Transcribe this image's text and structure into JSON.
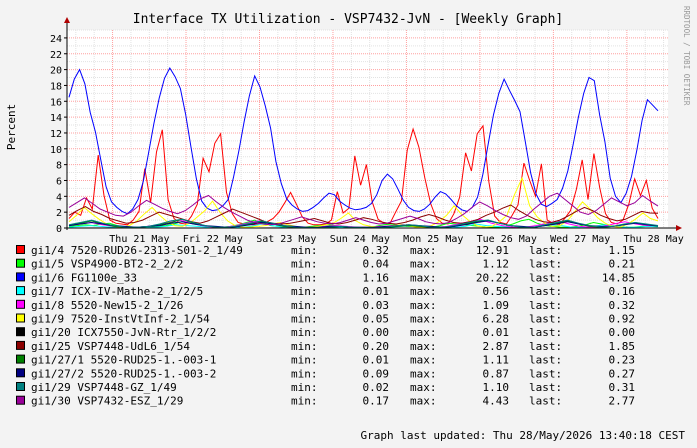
{
  "chart_data": {
    "type": "line",
    "title": "Interface TX Utilization - VSP7432-JvN - [Weekly Graph]",
    "ylabel": "Percent",
    "side_label": "RRDTOOL / TOBI OETIKER",
    "ylim": [
      0,
      25
    ],
    "yticks": [
      0,
      2,
      4,
      6,
      8,
      10,
      12,
      14,
      16,
      18,
      20,
      22,
      24
    ],
    "grid": true,
    "x_tick_labels": [
      "Thu 21 May",
      "Fri 22 May",
      "Sat 23 May",
      "Sun 24 May",
      "Mon 25 May",
      "Tue 26 May",
      "Wed 27 May",
      "Thu 28 May"
    ],
    "x_label_days": [
      1,
      2,
      3,
      4,
      5,
      6,
      7,
      8
    ],
    "x_range_days": [
      0.38,
      8.56
    ],
    "series": [
      {
        "name": "gi1/4 7520-RUD26-2313-S01-2_1/49",
        "color": "#FF0000",
        "swatch": "#FF0000",
        "min": "0.32",
        "max": "12.91",
        "last": "1.15",
        "values": [
          1.2,
          2.0,
          1.6,
          3.8,
          2.4,
          9.2,
          4.1,
          1.0,
          0.6,
          0.5,
          0.4,
          1.0,
          2.1,
          7.5,
          3.2,
          9.6,
          12.4,
          3.6,
          1.2,
          0.6,
          0.5,
          1.5,
          3.0,
          8.8,
          7.1,
          10.7,
          11.9,
          4.5,
          1.8,
          0.7,
          0.5,
          0.4,
          0.4,
          0.6,
          0.8,
          1.2,
          2.0,
          3.2,
          4.5,
          3.0,
          1.4,
          0.6,
          0.4,
          0.4,
          0.5,
          1.0,
          4.6,
          1.9,
          2.5,
          9.1,
          5.4,
          8.0,
          3.3,
          1.1,
          0.6,
          0.5,
          2.0,
          3.4,
          9.8,
          12.5,
          10.2,
          6.4,
          3.1,
          1.2,
          0.6,
          0.5,
          1.8,
          3.9,
          9.5,
          7.2,
          11.9,
          12.9,
          5.8,
          1.5,
          0.7,
          0.5,
          1.6,
          2.9,
          8.2,
          6.0,
          4.0,
          8.1,
          1.0,
          0.6,
          0.4,
          1.2,
          2.2,
          4.9,
          8.6,
          3.6,
          9.4,
          5.1,
          1.8,
          0.7,
          0.5,
          1.0,
          3.0,
          6.2,
          4.1,
          6.0,
          2.5,
          1.2
        ]
      },
      {
        "name": "gi1/5 VSP4900-BT2-2_2/2",
        "color": "#00FF00",
        "swatch": "#00FF00",
        "min": "0.04",
        "max": "1.12",
        "last": "0.21",
        "values": [
          0.2,
          0.3,
          0.4,
          0.3,
          0.5,
          0.6,
          0.3,
          0.1,
          0.1,
          0.1,
          0.1,
          0.2,
          0.3,
          0.5,
          0.8,
          0.6,
          0.4,
          0.2,
          0.1,
          0.1,
          0.2,
          0.4,
          0.7,
          1.0,
          0.6,
          0.3,
          0.2,
          0.1,
          0.1,
          0.1,
          0.2,
          0.3,
          0.4,
          0.3,
          0.2,
          0.1,
          0.1,
          0.1,
          0.2,
          0.4,
          0.5,
          0.3,
          0.2,
          0.2,
          0.1,
          0.1,
          0.3,
          0.6,
          0.5,
          0.4,
          0.3,
          0.2,
          0.1,
          0.1,
          0.2,
          0.5,
          0.9,
          1.1,
          0.6,
          0.3,
          0.2,
          0.1,
          0.1,
          0.2,
          0.4,
          0.7,
          0.5,
          0.3,
          0.2,
          0.1,
          0.1,
          0.2,
          0.3,
          0.2
        ]
      },
      {
        "name": "gi1/6 FG1100e_33",
        "color": "#0000FF",
        "swatch": "#0000FF",
        "min": "1.16",
        "max": "20.22",
        "last": "14.85",
        "values": [
          16.5,
          18.8,
          20.0,
          18.2,
          14.6,
          12.1,
          8.6,
          5.2,
          3.3,
          2.6,
          2.1,
          1.8,
          2.4,
          3.6,
          5.9,
          9.5,
          13.2,
          16.4,
          18.9,
          20.2,
          19.1,
          17.6,
          14.3,
          10.2,
          6.2,
          3.4,
          2.5,
          2.2,
          2.3,
          2.8,
          3.6,
          6.4,
          9.7,
          13.4,
          16.7,
          19.2,
          17.8,
          15.4,
          12.6,
          8.4,
          5.6,
          3.7,
          2.9,
          2.4,
          2.1,
          2.2,
          2.6,
          3.1,
          3.8,
          4.4,
          4.2,
          3.4,
          2.9,
          2.5,
          2.3,
          2.4,
          2.6,
          3.1,
          4.2,
          6.0,
          6.8,
          6.2,
          4.9,
          3.5,
          2.6,
          2.2,
          2.1,
          2.4,
          3.0,
          3.9,
          4.6,
          4.3,
          3.6,
          2.8,
          2.3,
          2.1,
          2.6,
          3.9,
          6.8,
          10.6,
          14.3,
          17.0,
          18.8,
          17.4,
          16.1,
          14.7,
          10.9,
          7.0,
          4.3,
          3.0,
          2.7,
          3.1,
          3.6,
          5.0,
          7.2,
          10.5,
          14.0,
          17.0,
          19.0,
          18.6,
          14.3,
          10.9,
          6.3,
          4.0,
          3.2,
          4.4,
          6.5,
          9.8,
          13.6,
          16.2,
          15.5,
          14.8
        ]
      },
      {
        "name": "gi1/7 ICX-IV-Mathe-2_1/2/5",
        "color": "#00FFFF",
        "swatch": "#00FFFF",
        "min": "0.01",
        "max": "0.56",
        "last": "0.16",
        "values": [
          0.1,
          0.2,
          0.3,
          0.2,
          0.1,
          0.1,
          0.05,
          0.05,
          0.1,
          0.2,
          0.4,
          0.3,
          0.2,
          0.1,
          0.1,
          0.05,
          0.1,
          0.2,
          0.5,
          0.3,
          0.1,
          0.05,
          0.05,
          0.05,
          0.1,
          0.1,
          0.1,
          0.05,
          0.05,
          0.1,
          0.1,
          0.2,
          0.3,
          0.2,
          0.1,
          0.05,
          0.1,
          0.2,
          0.5,
          0.3,
          0.2,
          0.1,
          0.05,
          0.1,
          0.2,
          0.4,
          0.3,
          0.1,
          0.1,
          0.2,
          0.4,
          0.2,
          0.1,
          0.1,
          0.2,
          0.16
        ]
      },
      {
        "name": "gi1/8 5520-New15-2_1/26",
        "color": "#FF00FF",
        "swatch": "#FF00FF",
        "min": "0.03",
        "max": "1.09",
        "last": "0.32",
        "values": [
          0.3,
          0.5,
          0.7,
          0.4,
          0.2,
          0.1,
          0.1,
          0.2,
          0.4,
          0.7,
          1.0,
          0.6,
          0.3,
          0.1,
          0.1,
          0.3,
          0.6,
          0.9,
          0.7,
          0.3,
          0.1,
          0.1,
          0.1,
          0.2,
          0.3,
          0.2,
          0.1,
          0.1,
          0.2,
          0.3,
          0.4,
          0.3,
          0.1,
          0.1,
          0.2,
          0.5,
          0.8,
          1.1,
          0.6,
          0.3,
          0.1,
          0.1,
          0.3,
          0.6,
          0.9,
          0.5,
          0.2,
          0.1,
          0.2,
          0.5,
          0.8,
          0.5,
          0.3,
          0.3
        ]
      },
      {
        "name": "gi1/9 7520-InstVtInf-2_1/54",
        "color": "#FFFF00",
        "swatch": "#FFFF00",
        "min": "0.05",
        "max": "6.28",
        "last": "0.92",
        "values": [
          0.8,
          1.6,
          2.6,
          1.8,
          1.1,
          0.5,
          0.2,
          0.1,
          0.3,
          0.9,
          1.8,
          2.6,
          1.6,
          0.8,
          0.3,
          0.2,
          0.6,
          1.4,
          2.2,
          3.4,
          2.0,
          0.9,
          0.3,
          0.1,
          0.1,
          0.2,
          0.3,
          0.5,
          0.7,
          0.4,
          0.2,
          0.1,
          0.1,
          0.2,
          0.4,
          0.6,
          1.2,
          1.9,
          0.9,
          0.4,
          0.2,
          0.1,
          0.2,
          0.3,
          0.4,
          0.3,
          0.1,
          0.1,
          0.3,
          0.8,
          1.6,
          2.8,
          1.7,
          0.9,
          0.3,
          0.1,
          0.2,
          0.8,
          1.6,
          4.2,
          6.3,
          2.8,
          1.4,
          0.6,
          0.2,
          0.3,
          0.9,
          2.1,
          3.3,
          2.4,
          1.3,
          0.6,
          0.2,
          0.1,
          0.5,
          1.1,
          1.9,
          1.2,
          0.9
        ]
      },
      {
        "name": "gi1/20 ICX7550-JvN-Rtr_1/2/2",
        "color": "#000000",
        "swatch": "#000000",
        "min": "0.00",
        "max": "0.01",
        "last": "0.00",
        "values": [
          0.0,
          0.01,
          0.0,
          0.0,
          0.01,
          0.0,
          0.0,
          0.0,
          0.01,
          0.0,
          0.0,
          0.0
        ]
      },
      {
        "name": "gi1/25 VSP7448-UdL6_1/54",
        "color": "#8B0000",
        "swatch": "#8B0000",
        "min": "0.20",
        "max": "2.87",
        "last": "1.85",
        "values": [
          1.6,
          2.2,
          2.7,
          2.1,
          1.7,
          1.2,
          0.9,
          0.6,
          0.7,
          1.0,
          1.5,
          2.0,
          1.7,
          1.4,
          1.1,
          0.8,
          0.6,
          0.9,
          1.4,
          1.9,
          2.4,
          2.0,
          1.6,
          1.2,
          0.8,
          0.6,
          0.5,
          0.6,
          0.8,
          1.0,
          1.2,
          0.9,
          0.6,
          0.5,
          0.7,
          1.0,
          1.3,
          1.1,
          0.8,
          0.6,
          0.5,
          0.7,
          1.0,
          1.4,
          1.7,
          1.4,
          1.0,
          0.7,
          0.6,
          0.8,
          1.1,
          1.6,
          2.0,
          2.5,
          2.9,
          2.2,
          1.6,
          1.1,
          0.8,
          0.7,
          1.0,
          1.5,
          2.1,
          2.6,
          2.2,
          1.6,
          1.2,
          0.9,
          1.1,
          1.6,
          2.1,
          1.9,
          1.85
        ]
      },
      {
        "name": "gi1/27/1 5520-RUD25-1.-003-1",
        "color": "#008000",
        "swatch": "#008000",
        "min": "0.01",
        "max": "1.11",
        "last": "0.23",
        "values": [
          0.3,
          0.6,
          0.9,
          0.5,
          0.2,
          0.1,
          0.1,
          0.2,
          0.4,
          0.7,
          1.1,
          0.6,
          0.3,
          0.1,
          0.1,
          0.2,
          0.5,
          0.8,
          0.5,
          0.2,
          0.1,
          0.05,
          0.05,
          0.1,
          0.2,
          0.1,
          0.05,
          0.05,
          0.1,
          0.2,
          0.3,
          0.2,
          0.1,
          0.1,
          0.2,
          0.5,
          0.8,
          1.0,
          0.6,
          0.3,
          0.1,
          0.1,
          0.3,
          0.6,
          0.9,
          0.5,
          0.2,
          0.1,
          0.2,
          0.4,
          0.7,
          0.4,
          0.23
        ]
      },
      {
        "name": "gi1/27/2 5520-RUD25-1.-003-2",
        "color": "#000080",
        "swatch": "#000080",
        "min": "0.09",
        "max": "0.87",
        "last": "0.27",
        "values": [
          0.3,
          0.5,
          0.7,
          0.5,
          0.3,
          0.2,
          0.1,
          0.2,
          0.3,
          0.6,
          0.8,
          0.5,
          0.3,
          0.2,
          0.1,
          0.2,
          0.4,
          0.7,
          0.5,
          0.3,
          0.2,
          0.1,
          0.1,
          0.2,
          0.2,
          0.1,
          0.1,
          0.1,
          0.2,
          0.3,
          0.4,
          0.3,
          0.2,
          0.1,
          0.2,
          0.4,
          0.7,
          0.9,
          0.6,
          0.3,
          0.2,
          0.1,
          0.3,
          0.5,
          0.8,
          0.5,
          0.3,
          0.2,
          0.2,
          0.4,
          0.6,
          0.4,
          0.27
        ]
      },
      {
        "name": "gi1/29 VSP7448-GZ_1/49",
        "color": "#008080",
        "swatch": "#008080",
        "min": "0.02",
        "max": "1.10",
        "last": "0.31",
        "values": [
          0.4,
          0.7,
          1.0,
          0.6,
          0.3,
          0.1,
          0.1,
          0.2,
          0.5,
          0.9,
          1.1,
          0.7,
          0.3,
          0.1,
          0.1,
          0.3,
          0.6,
          0.9,
          0.6,
          0.3,
          0.1,
          0.05,
          0.05,
          0.1,
          0.2,
          0.1,
          0.05,
          0.05,
          0.1,
          0.3,
          0.4,
          0.3,
          0.1,
          0.1,
          0.3,
          0.6,
          0.9,
          1.0,
          0.6,
          0.3,
          0.1,
          0.1,
          0.4,
          0.7,
          1.0,
          0.6,
          0.3,
          0.1,
          0.2,
          0.5,
          0.7,
          0.5,
          0.31
        ]
      },
      {
        "name": "gi1/30 VSP7432-ESZ_1/29",
        "color": "#990099",
        "swatch": "#990099",
        "min": "0.17",
        "max": "4.43",
        "last": "2.77",
        "values": [
          2.6,
          3.2,
          3.8,
          3.1,
          2.4,
          2.0,
          1.6,
          1.5,
          2.0,
          2.8,
          3.5,
          3.0,
          2.5,
          2.1,
          1.8,
          2.2,
          2.9,
          3.7,
          4.1,
          3.3,
          2.6,
          2.0,
          1.5,
          1.0,
          0.7,
          0.5,
          0.4,
          0.5,
          0.8,
          1.1,
          1.4,
          1.1,
          0.8,
          0.6,
          0.5,
          0.7,
          1.0,
          1.3,
          1.0,
          0.7,
          0.5,
          0.6,
          0.9,
          1.2,
          1.5,
          1.2,
          0.8,
          0.6,
          0.5,
          0.7,
          1.2,
          1.8,
          2.6,
          3.3,
          2.8,
          2.2,
          1.7,
          1.3,
          1.1,
          1.5,
          2.4,
          3.2,
          4.0,
          4.4,
          3.6,
          2.8,
          2.0,
          1.7,
          2.2,
          3.0,
          3.8,
          3.3,
          2.8,
          3.2,
          4.1,
          3.4,
          2.77
        ]
      }
    ],
    "table_headers": {
      "min": "min:",
      "max": "max:",
      "last": "last:"
    },
    "updated": "Graph last updated: Thu 28/May/2026 13:40:18 CEST"
  },
  "colors": {
    "background": "#F3F3F3",
    "canvas": "#FFFFFF",
    "grid_minor": "#E0E0E0",
    "grid_major": "#FFA0A0",
    "axis": "#000000",
    "arrow": "#B00000"
  }
}
